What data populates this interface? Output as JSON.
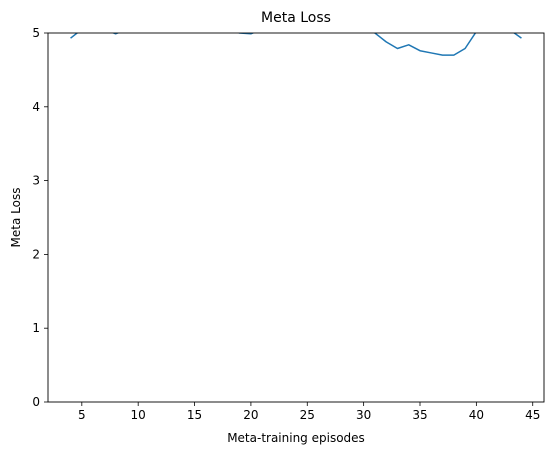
{
  "chart_data": {
    "type": "line",
    "title": "Meta Loss",
    "xlabel": "Meta-training episodes",
    "ylabel": "Meta Loss",
    "xlim": [
      2.0,
      46.0
    ],
    "ylim": [
      0,
      5
    ],
    "xticks": [
      5,
      10,
      15,
      20,
      25,
      30,
      35,
      40,
      45
    ],
    "yticks": [
      0,
      1,
      2,
      3,
      4,
      5
    ],
    "grid": false,
    "legend": "none",
    "series": [
      {
        "color": "#1f77b4",
        "x": [
          4,
          5,
          6,
          7,
          8,
          9,
          10,
          11,
          12,
          13,
          14,
          15,
          16,
          17,
          18,
          19,
          20,
          21,
          22,
          23,
          24,
          25,
          26,
          27,
          28,
          29,
          30,
          31,
          32,
          33,
          34,
          35,
          36,
          37,
          38,
          39,
          40,
          41,
          42,
          43,
          44
        ],
        "values": [
          4.93,
          5.05,
          5.1,
          5.05,
          4.99,
          5.05,
          5.08,
          5.1,
          5.1,
          5.1,
          5.1,
          5.1,
          5.1,
          5.1,
          5.05,
          5.0,
          4.99,
          5.05,
          5.1,
          5.1,
          5.1,
          5.1,
          5.1,
          5.1,
          5.1,
          5.1,
          5.1,
          5.0,
          4.88,
          4.79,
          4.84,
          4.76,
          4.73,
          4.7,
          4.7,
          4.79,
          5.02,
          5.1,
          5.1,
          5.04,
          4.93
        ]
      }
    ]
  }
}
